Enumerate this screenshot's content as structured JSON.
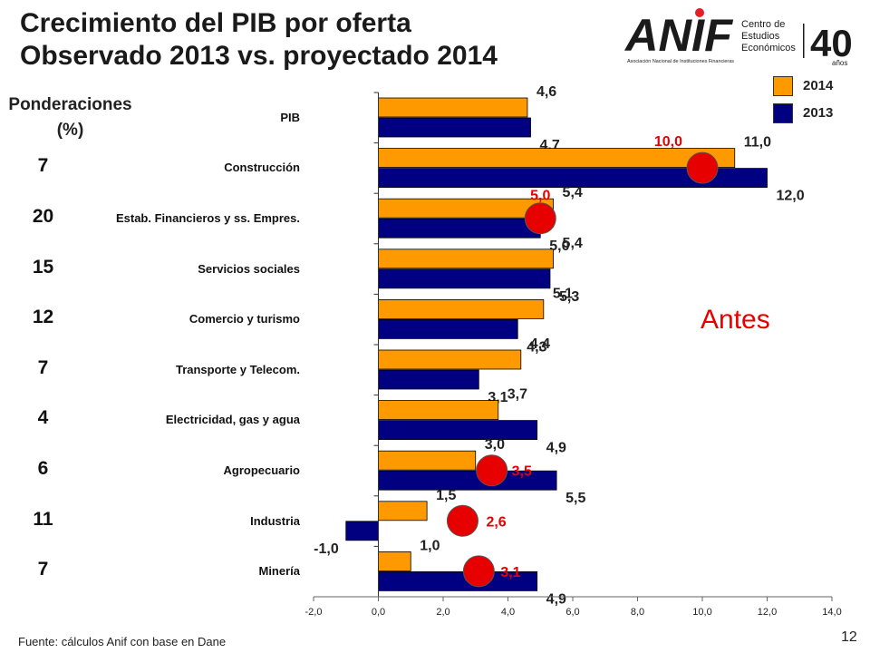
{
  "slide": {
    "title_line1": "Crecimiento del PIB por oferta",
    "title_line2": "Observado 2013 vs. proyectado 2014",
    "ponderaciones_line1": "Ponderaciones",
    "ponderaciones_line2": "(%)",
    "annotation": "Antes",
    "source": "Fuente:   cálculos  Anif con base en Dane",
    "page_number": "12"
  },
  "logo": {
    "word": "ANIF",
    "subtitle": "Asociación Nacional de Instituciones Financieras",
    "center_line1": "Centro de",
    "center_line2": "Estudios",
    "center_line3": "Económicos",
    "anniversary": "40",
    "anniversary_sub": "años",
    "color": "#1a1a1a",
    "accent": "#e31e24"
  },
  "ponderaciones": [
    "",
    "7",
    "20",
    "15",
    "12",
    "7",
    "4",
    "6",
    "11",
    "7"
  ],
  "chart_data": {
    "type": "bar",
    "orientation": "horizontal",
    "categories": [
      "PIB",
      "Construcción",
      "Estab. Financieros y ss. Empres.",
      "Servicios sociales",
      "Comercio y turismo",
      "Transporte y Telecom.",
      "Electricidad, gas y agua",
      "Agropecuario",
      "Industria",
      "Minería"
    ],
    "series": [
      {
        "name": "2014",
        "color": "#ff9900",
        "values": [
          4.6,
          11.0,
          5.4,
          5.4,
          5.1,
          4.4,
          3.7,
          3.0,
          1.5,
          1.0
        ],
        "labels": [
          "4,6",
          "11,0",
          "5,4",
          "5,4",
          "5,1",
          "4,4",
          "3,7",
          "3,0",
          "1,5",
          "1,0"
        ]
      },
      {
        "name": "2013",
        "color": "#000080",
        "values": [
          4.7,
          12.0,
          5.0,
          5.3,
          4.3,
          3.1,
          4.9,
          5.5,
          -1.0,
          4.9
        ],
        "labels": [
          "4,7",
          "12,0",
          "5,0",
          "5,3",
          "4,3",
          "3,1",
          "4,9",
          "5,5",
          "-1,0",
          "4,9"
        ]
      }
    ],
    "previous_projection": {
      "name": "Antes",
      "color": "#e60000",
      "points": [
        {
          "category": "Construcción",
          "value": 10.0,
          "label": "10,0"
        },
        {
          "category": "Estab. Financieros y ss. Empres.",
          "value": 5.0,
          "label": "5,0"
        },
        {
          "category": "Agropecuario",
          "value": 3.5,
          "label": "3,5"
        },
        {
          "category": "Industria",
          "value": 2.6,
          "label": "2,6"
        },
        {
          "category": "Minería",
          "value": 3.1,
          "label": "3,1"
        }
      ]
    },
    "xlim": [
      -2.0,
      14.0
    ],
    "xticks": [
      -2,
      0,
      2,
      4,
      6,
      8,
      10,
      12,
      14
    ],
    "xtick_labels": [
      "-2,0",
      "0,0",
      "2,0",
      "4,0",
      "6,0",
      "8,0",
      "10,0",
      "12,0",
      "14,0"
    ],
    "legend_position": "top-right",
    "grid": false
  }
}
